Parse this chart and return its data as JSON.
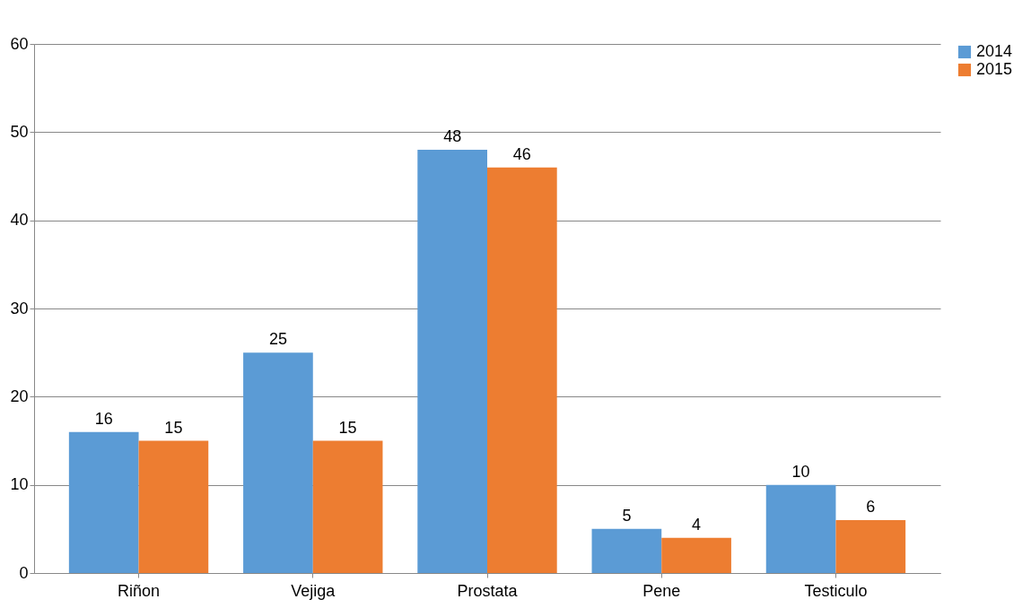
{
  "chart_data": {
    "type": "bar",
    "categories": [
      "Riñon",
      "Vejiga",
      "Prostata",
      "Pene",
      "Testiculo"
    ],
    "series": [
      {
        "name": "2014",
        "color": "#5b9bd5",
        "values": [
          16,
          25,
          48,
          5,
          10
        ]
      },
      {
        "name": "2015",
        "color": "#ed7d31",
        "values": [
          15,
          15,
          46,
          4,
          6
        ]
      }
    ],
    "ylim": [
      0,
      60
    ],
    "yticks": [
      0,
      10,
      20,
      30,
      40,
      50,
      60
    ],
    "grid": "y",
    "legend": "right",
    "data_labels": true
  }
}
